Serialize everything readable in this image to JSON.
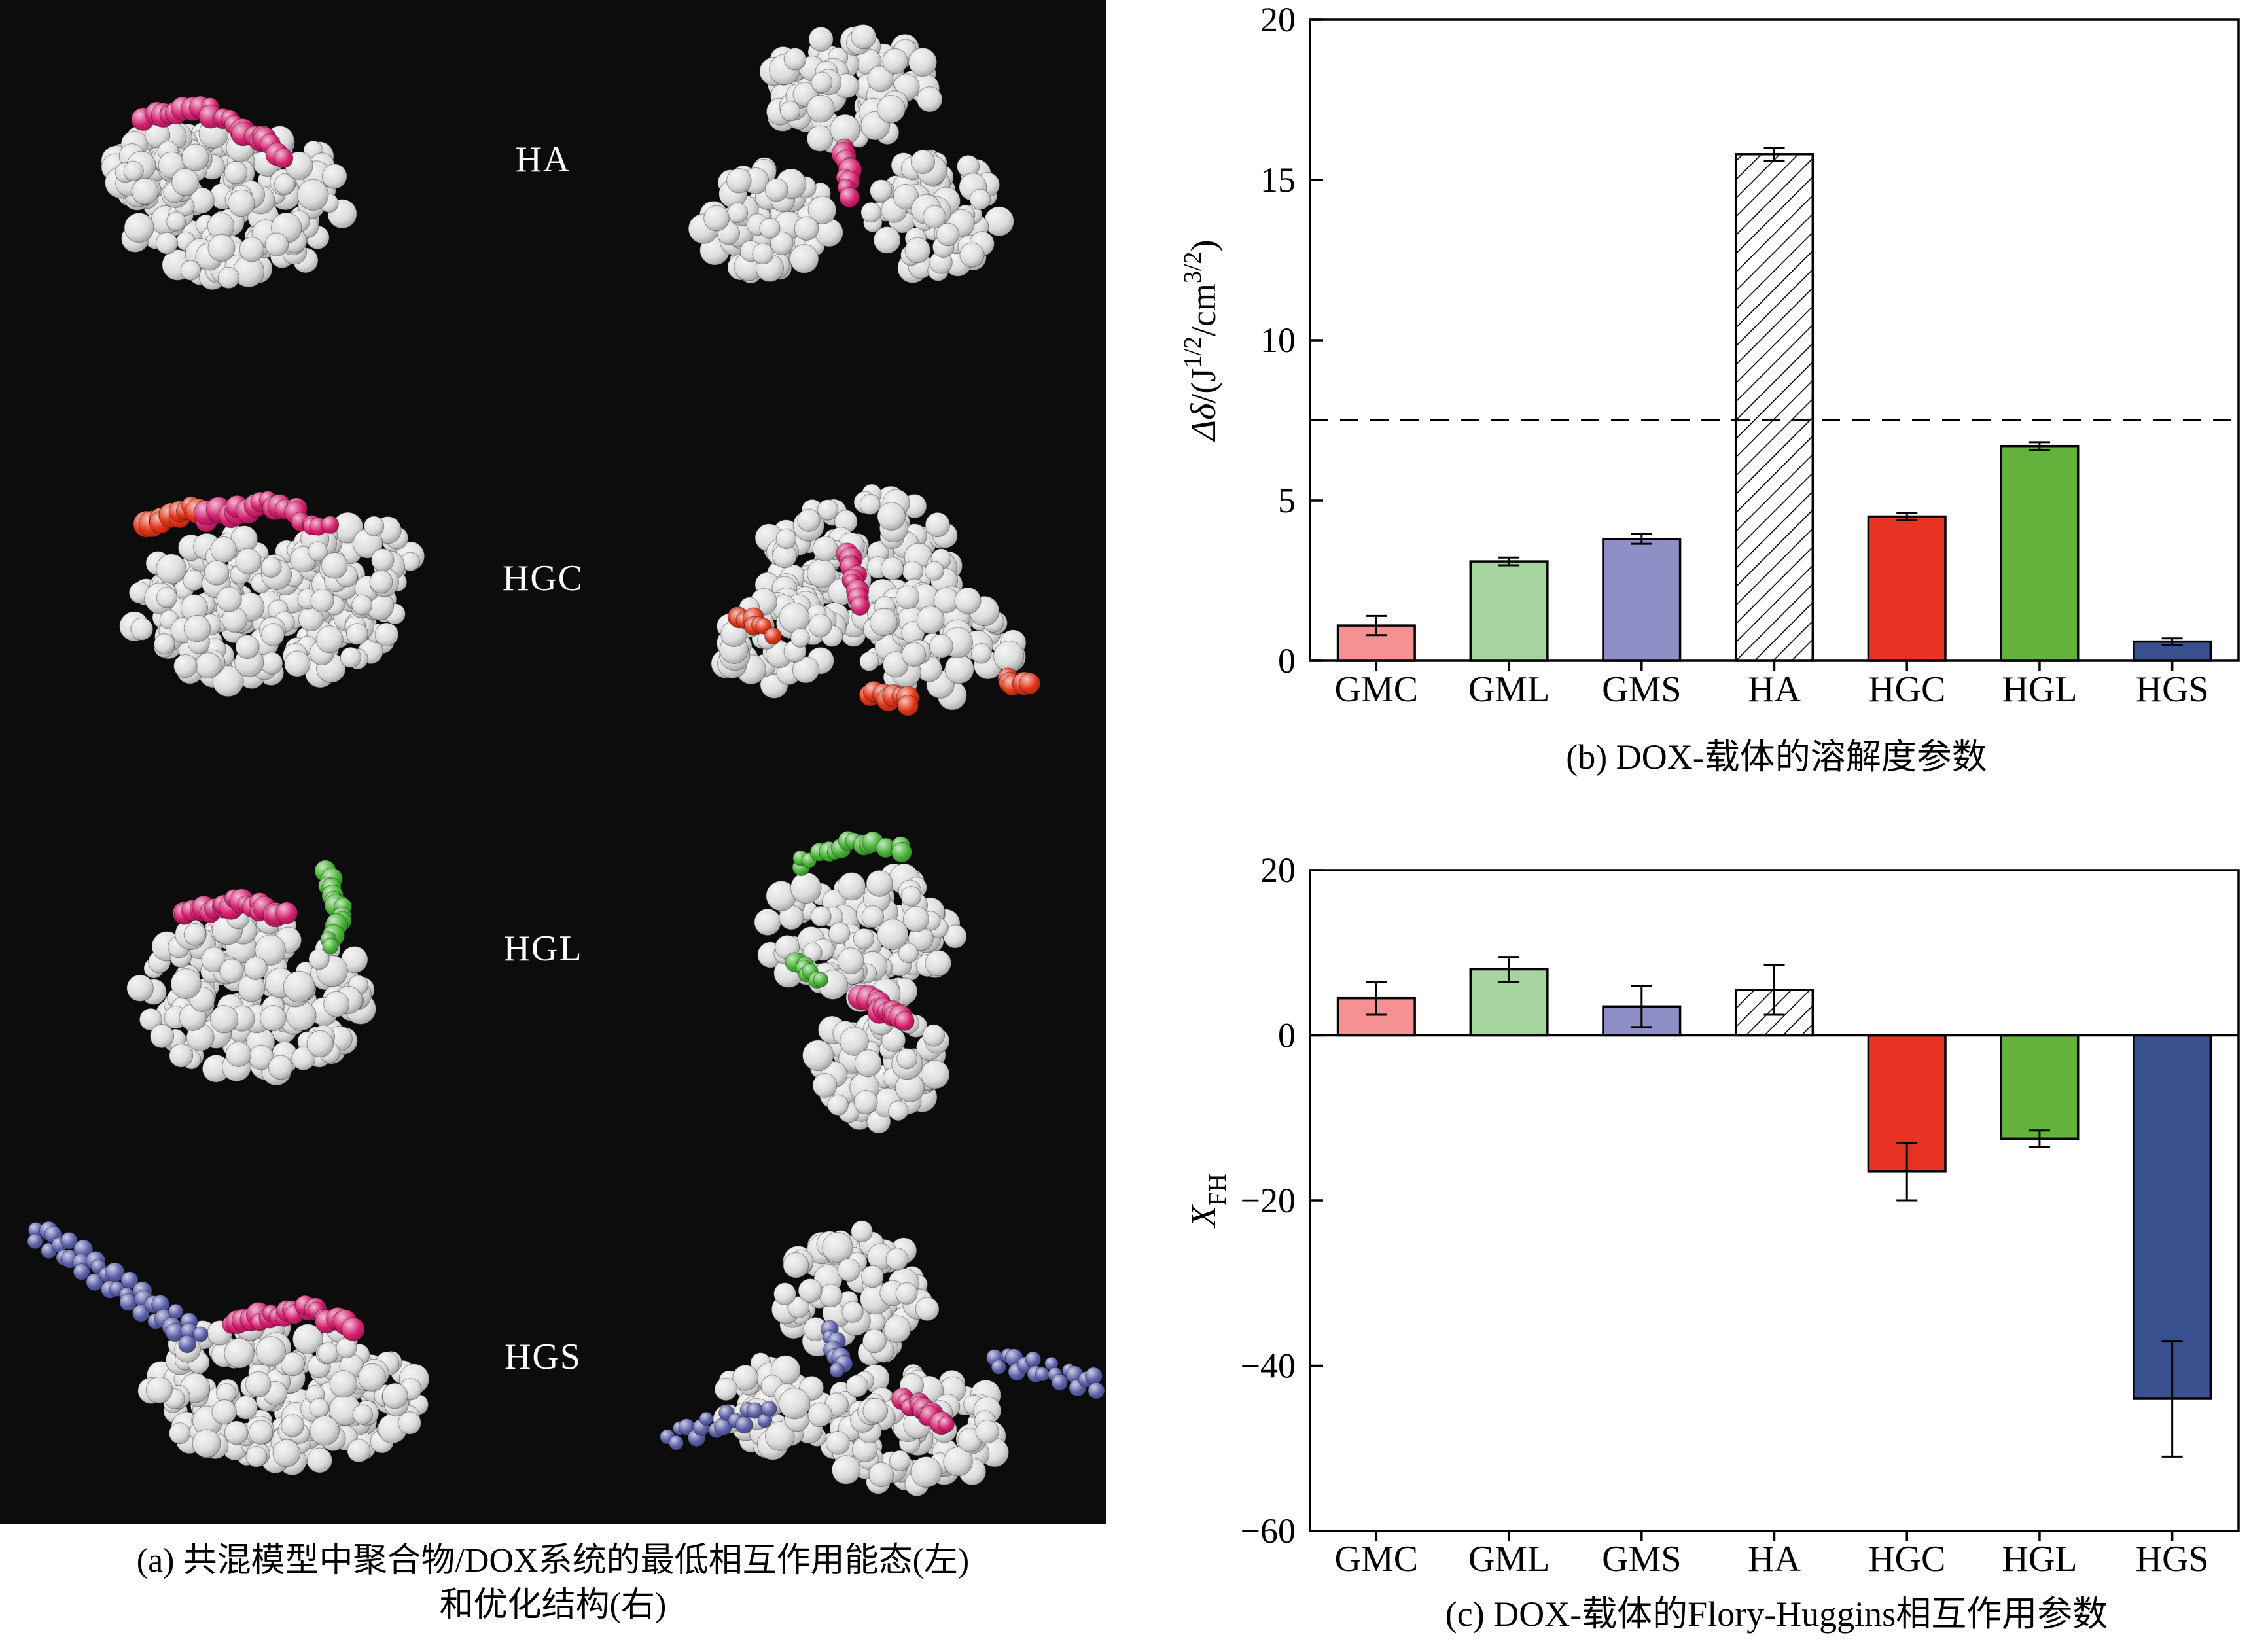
{
  "panel_a": {
    "rows": [
      {
        "label": "HA"
      },
      {
        "label": "HGC"
      },
      {
        "label": "HGL"
      },
      {
        "label": "HGS"
      }
    ],
    "caption_line1": "(a) 共混模型中聚合物/DOX系统的最低相互作用能态(左)",
    "caption_line2": "和优化结构(右)",
    "colors": {
      "background": "#0c0c0c",
      "carrier": "#dcdcdc",
      "dox": "#d4216f",
      "red_segment": "#e03418",
      "green_segment": "#46b335",
      "blue_segment": "#5a60a8"
    }
  },
  "chart_data": [
    {
      "id": "b",
      "type": "bar",
      "categories": [
        "GMC",
        "GML",
        "GMS",
        "HA",
        "HGC",
        "HGL",
        "HGS"
      ],
      "values": [
        1.1,
        3.1,
        3.8,
        15.8,
        4.5,
        6.7,
        0.6
      ],
      "errors": [
        0.3,
        0.12,
        0.15,
        0.2,
        0.12,
        0.12,
        0.1
      ],
      "bar_styles": [
        "#f59093",
        "#a6d49f",
        "#8e8fc6",
        "hatch",
        "#e63323",
        "#62b23c",
        "#39508f"
      ],
      "ylim": [
        0,
        20
      ],
      "yticks": [
        0,
        5,
        10,
        15,
        20
      ],
      "reference_line": 7.5,
      "ylabel_parts": [
        {
          "t": "Δδ",
          "italic": true
        },
        {
          "t": "/(J"
        },
        {
          "t": "1/2",
          "sup": true
        },
        {
          "t": "/cm"
        },
        {
          "t": "3/2",
          "sup": true
        },
        {
          "t": ")"
        }
      ],
      "caption": "(b) DOX-载体的溶解度参数"
    },
    {
      "id": "c",
      "type": "bar",
      "categories": [
        "GMC",
        "GML",
        "GMS",
        "HA",
        "HGC",
        "HGL",
        "HGS"
      ],
      "values": [
        4.5,
        8,
        3.5,
        5.5,
        -16.5,
        -12.5,
        -44
      ],
      "errors": [
        2,
        1.5,
        2.5,
        3,
        3.5,
        1,
        7
      ],
      "bar_styles": [
        "#f59093",
        "#a6d49f",
        "#8e8fc6",
        "hatch",
        "#e63323",
        "#62b23c",
        "#39508f"
      ],
      "ylim": [
        -60,
        20
      ],
      "yticks": [
        -60,
        -40,
        -20,
        0,
        20
      ],
      "reference_line": null,
      "ylabel_parts": [
        {
          "t": "X",
          "italic": true
        },
        {
          "t": "FH",
          "sub": true
        }
      ],
      "caption": "(c) DOX-载体的Flory-Huggins相互作用参数"
    }
  ]
}
